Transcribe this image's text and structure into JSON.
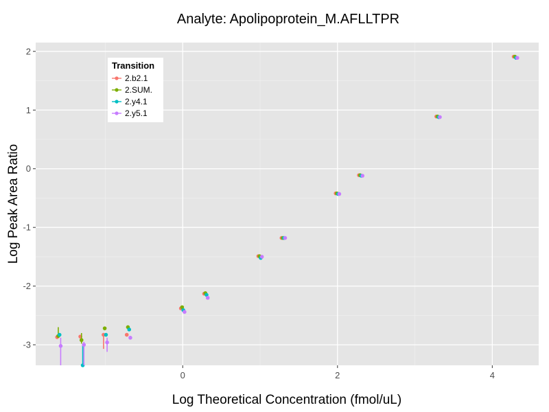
{
  "chart_data": {
    "type": "scatter",
    "title": "Analyte: Apolipoprotein_M.AFLLTPR",
    "xlabel": "Log Theoretical Concentration (fmol/uL)",
    "ylabel": "Log Peak Area Ratio",
    "xlim": [
      -1.9,
      4.6
    ],
    "ylim": [
      -3.35,
      2.15
    ],
    "x_ticks": [
      0,
      2,
      4
    ],
    "y_ticks": [
      -3,
      -2,
      -1,
      0,
      1,
      2
    ],
    "grid": true,
    "legend": {
      "title": "Transition",
      "position": "top-left"
    },
    "series": [
      {
        "name": "2.b2.1",
        "color": "#F8766D",
        "points": [
          {
            "x": -1.6,
            "y": -2.87,
            "ymin": -2.9,
            "ymax": -2.84
          },
          {
            "x": -1.3,
            "y": -2.86,
            "ymin": -2.89,
            "ymax": -2.83
          },
          {
            "x": -1.0,
            "y": -2.83,
            "ymin": -3.07,
            "ymax": -2.82
          },
          {
            "x": -0.7,
            "y": -2.83,
            "ymin": -2.85,
            "ymax": -2.81
          },
          {
            "x": 0.0,
            "y": -2.38
          },
          {
            "x": 0.3,
            "y": -2.13
          },
          {
            "x": 1.0,
            "y": -1.49
          },
          {
            "x": 1.3,
            "y": -1.18
          },
          {
            "x": 2.0,
            "y": -0.42
          },
          {
            "x": 2.3,
            "y": -0.11
          },
          {
            "x": 3.3,
            "y": 0.89
          },
          {
            "x": 4.3,
            "y": 1.91
          }
        ]
      },
      {
        "name": "2.SUM.",
        "color": "#7CAE00",
        "points": [
          {
            "x": -1.6,
            "y": -2.85,
            "ymin": -2.88,
            "ymax": -2.7
          },
          {
            "x": -1.3,
            "y": -2.92,
            "ymin": -2.98,
            "ymax": -2.8
          },
          {
            "x": -1.0,
            "y": -2.72,
            "ymin": -2.75,
            "ymax": -2.69
          },
          {
            "x": -0.7,
            "y": -2.7,
            "ymin": -2.72,
            "ymax": -2.68
          },
          {
            "x": 0.0,
            "y": -2.36
          },
          {
            "x": 0.3,
            "y": -2.12
          },
          {
            "x": 1.0,
            "y": -1.49
          },
          {
            "x": 1.3,
            "y": -1.18
          },
          {
            "x": 2.0,
            "y": -0.42
          },
          {
            "x": 2.3,
            "y": -0.11
          },
          {
            "x": 3.3,
            "y": 0.89
          },
          {
            "x": 4.3,
            "y": 1.91
          }
        ]
      },
      {
        "name": "2.y4.1",
        "color": "#00BFC4",
        "points": [
          {
            "x": -1.6,
            "y": -2.83,
            "ymin": -2.86,
            "ymax": -2.8
          },
          {
            "x": -1.3,
            "y": -3.35,
            "ymin": -3.35,
            "ymax": -2.98
          },
          {
            "x": -1.0,
            "y": -2.83,
            "ymin": -2.86,
            "ymax": -2.8
          },
          {
            "x": -0.7,
            "y": -2.74,
            "ymin": -2.76,
            "ymax": -2.72
          },
          {
            "x": 0.0,
            "y": -2.41
          },
          {
            "x": 0.3,
            "y": -2.15
          },
          {
            "x": 1.0,
            "y": -1.52
          },
          {
            "x": 1.3,
            "y": -1.18
          },
          {
            "x": 2.0,
            "y": -0.43
          },
          {
            "x": 2.3,
            "y": -0.12
          },
          {
            "x": 3.3,
            "y": 0.88
          },
          {
            "x": 4.3,
            "y": 1.89
          }
        ]
      },
      {
        "name": "2.y5.1",
        "color": "#C77CFF",
        "points": [
          {
            "x": -1.6,
            "y": -3.02,
            "ymin": -3.35,
            "ymax": -2.88
          },
          {
            "x": -1.3,
            "y": -3.0,
            "ymin": -3.35,
            "ymax": -2.95
          },
          {
            "x": -1.0,
            "y": -2.96,
            "ymin": -3.12,
            "ymax": -2.88
          },
          {
            "x": -0.7,
            "y": -2.88,
            "ymin": -2.91,
            "ymax": -2.85
          },
          {
            "x": 0.0,
            "y": -2.44
          },
          {
            "x": 0.3,
            "y": -2.2
          },
          {
            "x": 1.0,
            "y": -1.5
          },
          {
            "x": 1.3,
            "y": -1.18
          },
          {
            "x": 2.0,
            "y": -0.43
          },
          {
            "x": 2.3,
            "y": -0.12
          },
          {
            "x": 3.3,
            "y": 0.88
          },
          {
            "x": 4.3,
            "y": 1.89
          }
        ]
      }
    ]
  }
}
